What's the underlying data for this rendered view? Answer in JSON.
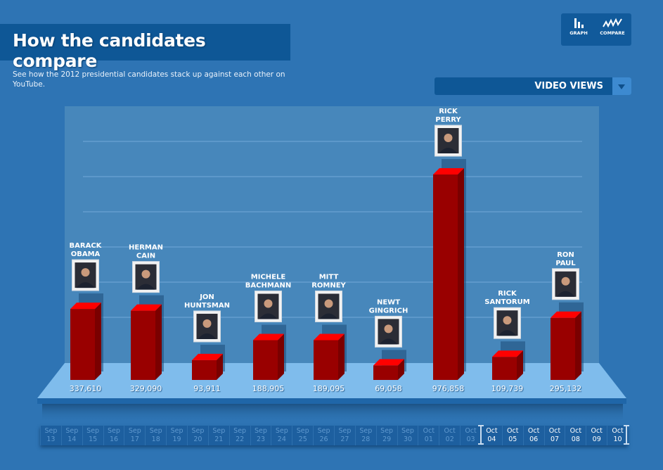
{
  "header": {
    "title": "How the candidates compare",
    "subtitle": "See how the 2012 presidential candidates stack up against each other on YouTube."
  },
  "mode_buttons": [
    {
      "label": "GRAPH",
      "icon": "bar-graph-icon"
    },
    {
      "label": "COMPARE",
      "icon": "line-compare-icon"
    }
  ],
  "metric_dropdown": {
    "selected": "VIDEO VIEWS",
    "icon": "chevron-down-icon"
  },
  "colors": {
    "background": "#2e74b4",
    "panel": "#4787bb",
    "floor": "#7fbcec",
    "bar_front": "#990000",
    "bar_top": "#ff0000",
    "bar_side": "#7a0000"
  },
  "chart_data": {
    "type": "bar",
    "title": "Video Views",
    "xlabel": "",
    "ylabel": "",
    "ylim": [
      0,
      1200000
    ],
    "grid": true,
    "categories": [
      "BARACK OBAMA",
      "HERMAN CAIN",
      "JON HUNTSMAN",
      "MICHELE BACHMANN",
      "MITT ROMNEY",
      "NEWT GINGRICH",
      "RICK PERRY",
      "RICK SANTORUM",
      "RON PAUL"
    ],
    "name_lines": [
      [
        "BARACK",
        "OBAMA"
      ],
      [
        "HERMAN",
        "CAIN"
      ],
      [
        "JON",
        "HUNTSMAN"
      ],
      [
        "MICHELE",
        "BACHMANN"
      ],
      [
        "MITT",
        "ROMNEY"
      ],
      [
        "NEWT",
        "GINGRICH"
      ],
      [
        "RICK",
        "PERRY"
      ],
      [
        "RICK",
        "SANTORUM"
      ],
      [
        "RON",
        "PAUL"
      ]
    ],
    "values": [
      337610,
      329090,
      93911,
      188905,
      189095,
      69058,
      976858,
      109739,
      295132
    ],
    "value_labels": [
      "337,610",
      "329,090",
      "93,911",
      "188,905",
      "189,095",
      "69,058",
      "976,858",
      "109,739",
      "295,132"
    ]
  },
  "timeline": {
    "dates": [
      [
        "Sep",
        "13"
      ],
      [
        "Sep",
        "14"
      ],
      [
        "Sep",
        "15"
      ],
      [
        "Sep",
        "16"
      ],
      [
        "Sep",
        "17"
      ],
      [
        "Sep",
        "18"
      ],
      [
        "Sep",
        "19"
      ],
      [
        "Sep",
        "20"
      ],
      [
        "Sep",
        "21"
      ],
      [
        "Sep",
        "22"
      ],
      [
        "Sep",
        "23"
      ],
      [
        "Sep",
        "24"
      ],
      [
        "Sep",
        "25"
      ],
      [
        "Sep",
        "26"
      ],
      [
        "Sep",
        "27"
      ],
      [
        "Sep",
        "28"
      ],
      [
        "Sep",
        "29"
      ],
      [
        "Sep",
        "30"
      ],
      [
        "Oct",
        "01"
      ],
      [
        "Oct",
        "02"
      ],
      [
        "Oct",
        "03"
      ],
      [
        "Oct",
        "04"
      ],
      [
        "Oct",
        "05"
      ],
      [
        "Oct",
        "06"
      ],
      [
        "Oct",
        "07"
      ],
      [
        "Oct",
        "08"
      ],
      [
        "Oct",
        "09"
      ],
      [
        "Oct",
        "10"
      ]
    ],
    "selected_start": "Oct 04",
    "selected_end": "Oct 10"
  }
}
